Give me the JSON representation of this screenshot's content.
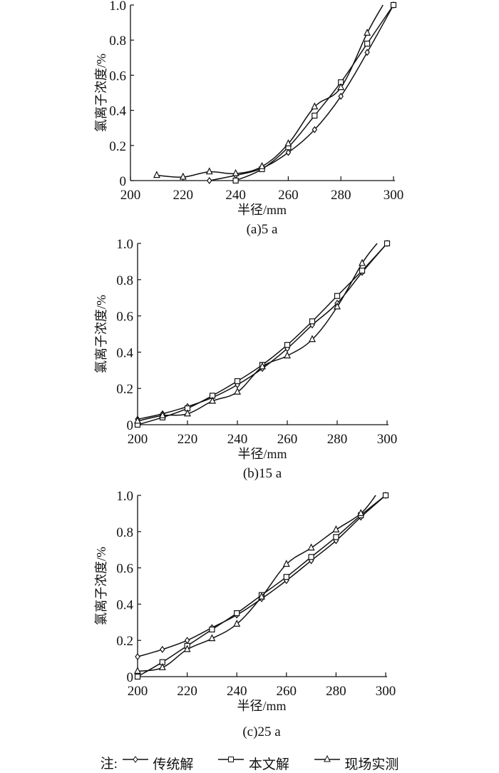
{
  "chart_data": [
    {
      "type": "line",
      "caption": "(a)5 a",
      "xlabel": "半径/mm",
      "ylabel": "氯离子浓度/%",
      "xlim": [
        200,
        300
      ],
      "ylim": [
        0,
        1.0
      ],
      "xticks": [
        "200",
        "220",
        "240",
        "260",
        "280",
        "300"
      ],
      "yticks": [
        "0",
        "0.2",
        "0.4",
        "0.6",
        "0.8",
        "1.0"
      ],
      "series": [
        {
          "name": "传统解",
          "marker": "diamond",
          "x": [
            230,
            240,
            250,
            260,
            270,
            280,
            290,
            300
          ],
          "y": [
            0.0,
            0.03,
            0.07,
            0.16,
            0.29,
            0.48,
            0.73,
            1.0
          ]
        },
        {
          "name": "本文解",
          "marker": "square",
          "x": [
            240,
            250,
            260,
            270,
            280,
            290,
            300
          ],
          "y": [
            0.0,
            0.065,
            0.19,
            0.37,
            0.56,
            0.78,
            1.0
          ]
        },
        {
          "name": "现场实测",
          "marker": "triangle",
          "x": [
            210,
            220,
            230,
            240,
            250,
            260,
            270,
            280,
            290
          ],
          "y": [
            0.03,
            0.02,
            0.05,
            0.04,
            0.08,
            0.21,
            0.42,
            0.53,
            0.84
          ]
        }
      ]
    },
    {
      "type": "line",
      "caption": "(b)15 a",
      "xlabel": "半径/mm",
      "ylabel": "氯离子浓度/%",
      "xlim": [
        200,
        300
      ],
      "ylim": [
        0,
        1.0
      ],
      "xticks": [
        "200",
        "220",
        "240",
        "260",
        "280",
        "300"
      ],
      "yticks": [
        "0",
        "0.2",
        "0.4",
        "0.6",
        "0.8",
        "1.0"
      ],
      "series": [
        {
          "name": "传统解",
          "marker": "diamond",
          "x": [
            200,
            210,
            220,
            230,
            240,
            250,
            260,
            270,
            280,
            290,
            300
          ],
          "y": [
            0.03,
            0.06,
            0.1,
            0.15,
            0.22,
            0.31,
            0.42,
            0.55,
            0.67,
            0.84,
            1.0
          ]
        },
        {
          "name": "本文解",
          "marker": "square",
          "x": [
            200,
            210,
            220,
            230,
            240,
            250,
            260,
            270,
            280,
            290,
            300
          ],
          "y": [
            0.0,
            0.04,
            0.09,
            0.16,
            0.24,
            0.33,
            0.44,
            0.57,
            0.71,
            0.85,
            1.0
          ]
        },
        {
          "name": "现场实测",
          "marker": "triangle",
          "x": [
            200,
            210,
            220,
            230,
            240,
            250,
            260,
            270,
            280,
            290
          ],
          "y": [
            0.02,
            0.05,
            0.06,
            0.13,
            0.18,
            0.32,
            0.38,
            0.47,
            0.65,
            0.89
          ]
        }
      ]
    },
    {
      "type": "line",
      "caption": "(c)25 a",
      "xlabel": "半径/mm",
      "ylabel": "氯离子浓度/%",
      "xlim": [
        200,
        300
      ],
      "ylim": [
        0,
        1.0
      ],
      "xticks": [
        "200",
        "220",
        "240",
        "260",
        "280",
        "300"
      ],
      "yticks": [
        "0",
        "0.2",
        "0.4",
        "0.6",
        "0.8",
        "1.0"
      ],
      "series": [
        {
          "name": "传统解",
          "marker": "diamond",
          "x": [
            200,
            210,
            220,
            230,
            240,
            250,
            260,
            270,
            280,
            290,
            300
          ],
          "y": [
            0.11,
            0.15,
            0.2,
            0.27,
            0.34,
            0.43,
            0.53,
            0.64,
            0.75,
            0.88,
            1.0
          ]
        },
        {
          "name": "本文解",
          "marker": "square",
          "x": [
            200,
            210,
            220,
            230,
            240,
            250,
            260,
            270,
            280,
            290,
            300
          ],
          "y": [
            0.0,
            0.08,
            0.17,
            0.26,
            0.35,
            0.45,
            0.55,
            0.66,
            0.77,
            0.89,
            1.0
          ]
        },
        {
          "name": "现场实测",
          "marker": "triangle",
          "x": [
            200,
            210,
            220,
            230,
            240,
            250,
            260,
            270,
            280,
            290
          ],
          "y": [
            0.03,
            0.05,
            0.15,
            0.21,
            0.29,
            0.44,
            0.62,
            0.71,
            0.81,
            0.9
          ]
        }
      ]
    }
  ],
  "legend": {
    "prefix": "注:",
    "items": [
      "传统解",
      "本文解",
      "现场实测"
    ]
  }
}
